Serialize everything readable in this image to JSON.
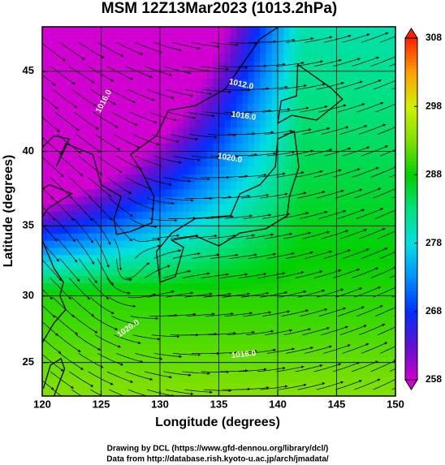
{
  "chart_data": {
    "type": "map",
    "title": "MSM 12Z13Mar2023 (1013.2hPa)",
    "xlabel": "Longitude (degrees)",
    "ylabel": "Latitude  (degrees)",
    "xlim": [
      120,
      150
    ],
    "xticks": [
      120,
      125,
      130,
      135,
      140,
      145,
      150
    ],
    "ylim": [
      22.4,
      47.6
    ],
    "yticks": [
      25,
      30,
      35,
      40,
      45
    ],
    "grid": true,
    "colorbar": {
      "lim": [
        258,
        308
      ],
      "ticks": [
        258,
        268,
        278,
        288,
        298,
        308
      ],
      "colormap": [
        "#d000d0",
        "#6010d0",
        "#0030ff",
        "#0090ff",
        "#00e0e0",
        "#00e080",
        "#00d000",
        "#80e000",
        "#d0f000",
        "#ffa000",
        "#ff2000"
      ]
    },
    "contour_labels": [
      "1012.0",
      "1016.0",
      "1016.0",
      "1020.0",
      "1020.0",
      "1016.0"
    ],
    "credits": [
      "Drawing by DCL (https://www.gfd-dennou.org/library/dcl/)",
      "Data from http://database.rish.kyoto-u.ac.jp/arch/jmadata/"
    ]
  }
}
